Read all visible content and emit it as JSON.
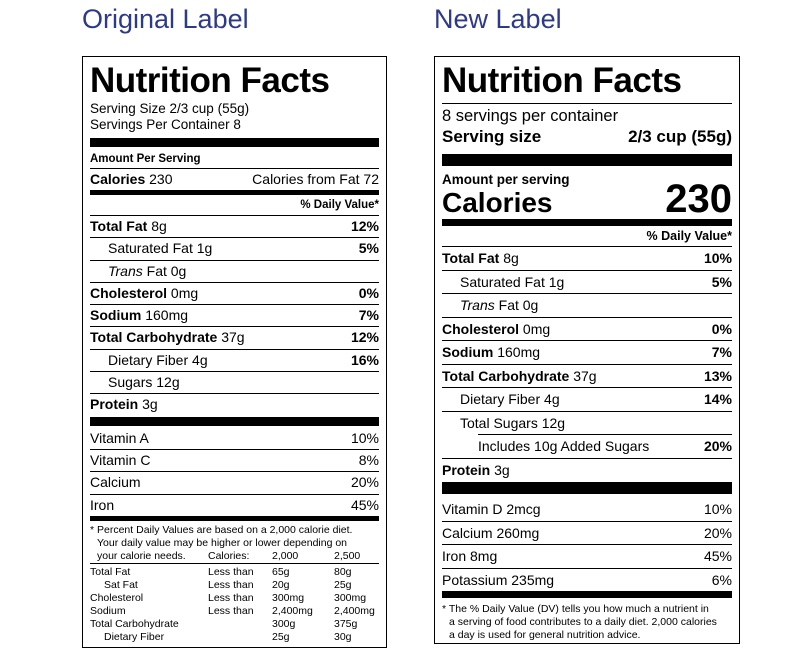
{
  "headings": {
    "original": "Original Label",
    "new": "New Label"
  },
  "original": {
    "title": "Nutrition Facts",
    "serving_size": "Serving Size 2/3 cup (55g)",
    "servings_per_container": "Servings Per Container 8",
    "amount_per_serving": "Amount Per Serving",
    "calories_label": "Calories",
    "calories_value": "230",
    "calories_from_fat": "Calories from Fat 72",
    "dv_header": "% Daily Value*",
    "nutrients": [
      {
        "name": "Total Fat",
        "amount": "8g",
        "dv": "12%"
      },
      {
        "name": "Saturated Fat",
        "amount": "1g",
        "dv": "5%"
      },
      {
        "name": "Trans",
        "amount": "Fat 0g",
        "dv": ""
      },
      {
        "name": "Cholesterol",
        "amount": "0mg",
        "dv": "0%"
      },
      {
        "name": "Sodium",
        "amount": "160mg",
        "dv": "7%"
      },
      {
        "name": "Total Carbohydrate",
        "amount": "37g",
        "dv": "12%"
      },
      {
        "name": "Dietary Fiber",
        "amount": "4g",
        "dv": "16%"
      },
      {
        "name": "Sugars",
        "amount": "12g",
        "dv": ""
      },
      {
        "name": "Protein",
        "amount": "3g",
        "dv": ""
      }
    ],
    "vitamins": [
      {
        "name": "Vitamin A",
        "dv": "10%"
      },
      {
        "name": "Vitamin C",
        "dv": "8%"
      },
      {
        "name": "Calcium",
        "dv": "20%"
      },
      {
        "name": "Iron",
        "dv": "45%"
      }
    ],
    "footnote": [
      "* Percent Daily Values are based on a 2,000 calorie diet.",
      "Your daily value may be higher or lower depending on",
      "your calorie needs."
    ],
    "dv_table": {
      "header": [
        "Calories:",
        "2,000",
        "2,500"
      ],
      "rows": [
        {
          "name": "Total Fat",
          "qual": "Less than",
          "v1": "65g",
          "v2": "80g"
        },
        {
          "name": "Sat Fat",
          "qual": "Less than",
          "v1": "20g",
          "v2": "25g"
        },
        {
          "name": "Cholesterol",
          "qual": "Less than",
          "v1": "300mg",
          "v2": "300mg"
        },
        {
          "name": "Sodium",
          "qual": "Less than",
          "v1": "2,400mg",
          "v2": "2,400mg"
        },
        {
          "name": "Total Carbohydrate",
          "qual": "",
          "v1": "300g",
          "v2": "375g"
        },
        {
          "name": "Dietary Fiber",
          "qual": "",
          "v1": "25g",
          "v2": "30g"
        }
      ]
    }
  },
  "new": {
    "title": "Nutrition Facts",
    "servings_per_container": "8 servings per container",
    "serving_size_label": "Serving size",
    "serving_size_value": "2/3 cup (55g)",
    "amount_per_serving": "Amount per serving",
    "calories_label": "Calories",
    "calories_value": "230",
    "dv_header": "% Daily Value*",
    "nutrients": [
      {
        "name": "Total Fat",
        "amount": "8g",
        "dv": "10%"
      },
      {
        "name": "Saturated Fat",
        "amount": "1g",
        "dv": "5%"
      },
      {
        "name": "Trans",
        "amount": "Fat 0g",
        "dv": ""
      },
      {
        "name": "Cholesterol",
        "amount": "0mg",
        "dv": "0%"
      },
      {
        "name": "Sodium",
        "amount": "160mg",
        "dv": "7%"
      },
      {
        "name": "Total Carbohydrate",
        "amount": "37g",
        "dv": "13%"
      },
      {
        "name": "Dietary Fiber",
        "amount": "4g",
        "dv": "14%"
      },
      {
        "name": "Total Sugars",
        "amount": "12g",
        "dv": ""
      },
      {
        "name": "Includes 10g Added Sugars",
        "amount": "",
        "dv": "20%"
      },
      {
        "name": "Protein",
        "amount": "3g",
        "dv": ""
      }
    ],
    "vitamins": [
      {
        "name": "Vitamin D 2mcg",
        "dv": "10%"
      },
      {
        "name": "Calcium 260mg",
        "dv": "20%"
      },
      {
        "name": "Iron 8mg",
        "dv": "45%"
      },
      {
        "name": "Potassium 235mg",
        "dv": "6%"
      }
    ],
    "footnote": [
      "* The % Daily Value (DV) tells you how much a nutrient in",
      "a serving of food contributes to a daily diet. 2,000 calories",
      "a day is used for general nutrition advice."
    ]
  }
}
